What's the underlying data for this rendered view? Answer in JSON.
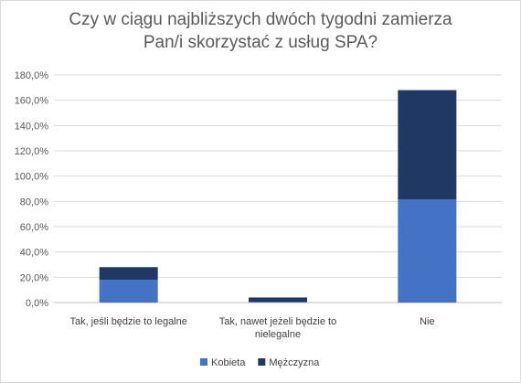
{
  "chart_data": {
    "type": "bar",
    "stacked": true,
    "title_lines": [
      "Czy w ciągu najbliższych dwóch tygodni zamierza",
      "Pan/i skorzystać z usług SPA?"
    ],
    "categories": [
      [
        "Tak, jeśli będzie to legalne"
      ],
      [
        "Tak, nawet jeżeli będzie to",
        "nielegalne"
      ],
      [
        "Nie"
      ]
    ],
    "series": [
      {
        "name": "Kobieta",
        "color": "#4472c4",
        "values": [
          18.0,
          0.5,
          81.5
        ]
      },
      {
        "name": "Mężczyzna",
        "color": "#1f3864",
        "values": [
          10.0,
          3.5,
          86.5
        ]
      }
    ],
    "y_ticks": [
      "0,0%",
      "20,0%",
      "40,0%",
      "60,0%",
      "80,0%",
      "100,0%",
      "120,0%",
      "140,0%",
      "160,0%",
      "180,0%"
    ],
    "ylim": [
      0,
      180
    ],
    "grid": true,
    "legend_position": "bottom"
  }
}
